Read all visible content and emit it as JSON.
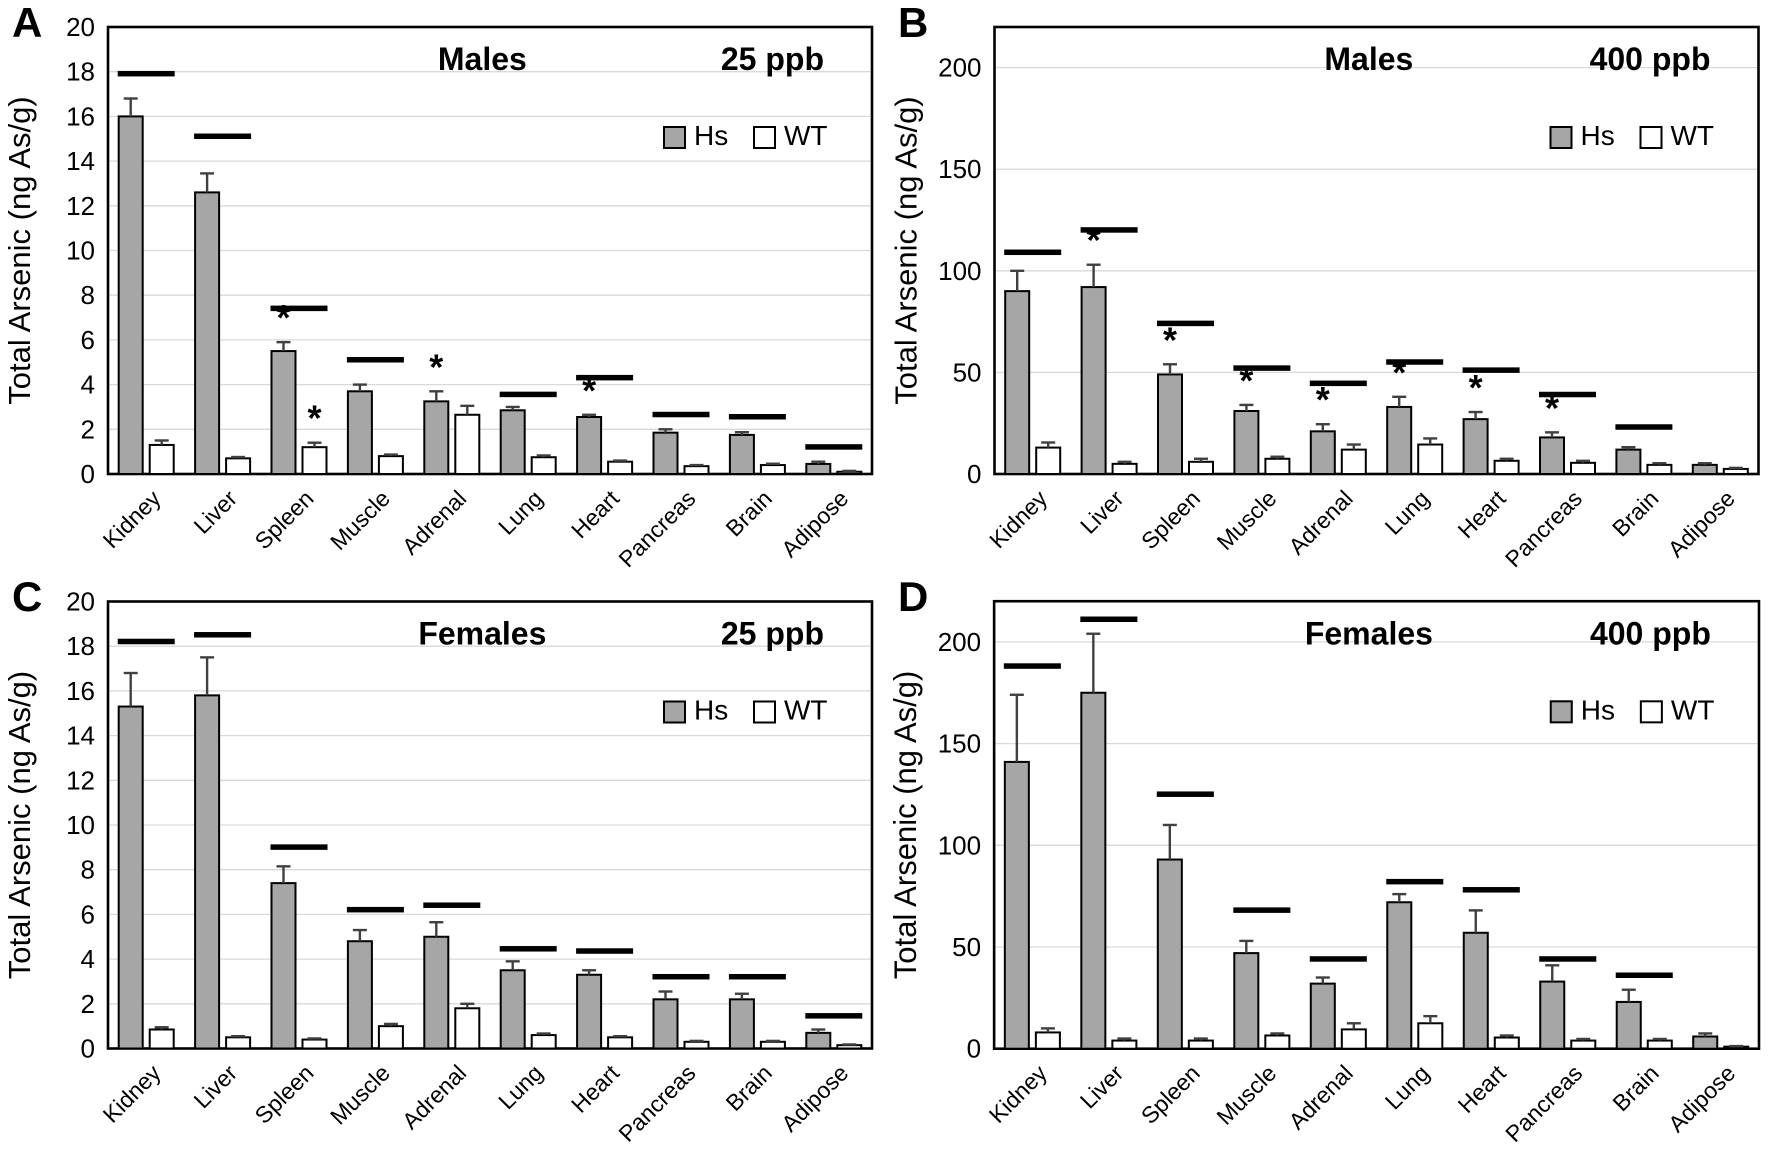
{
  "figure": {
    "ylabel": "Total Arsenic (ng As/g)",
    "legend_labels": [
      "Hs",
      "WT"
    ],
    "colors": {
      "hs_fill": "#a6a6a6",
      "wt_fill": "#ffffff",
      "bar_border": "#000000",
      "gridline": "#d9d9d9",
      "error_bar": "#404040",
      "sig_line": "#000000",
      "text": "#000000"
    }
  },
  "chart_data": [
    {
      "panel": "A",
      "type": "bar",
      "title": "Males",
      "dose": "25 ppb",
      "ylabel": "Total Arsenic (ng As/g)",
      "ylim": [
        0,
        20
      ],
      "yticks": [
        0,
        2,
        4,
        6,
        8,
        10,
        12,
        14,
        16,
        18,
        20
      ],
      "grid": true,
      "legend_position": "top-right",
      "categories": [
        "Kidney",
        "Liver",
        "Spleen",
        "Muscle",
        "Adrenal",
        "Lung",
        "Heart",
        "Pancreas",
        "Brain",
        "Adipose"
      ],
      "series": [
        {
          "name": "Hs",
          "values": [
            16.0,
            12.6,
            5.5,
            3.7,
            3.25,
            2.85,
            2.55,
            1.85,
            1.75,
            0.45
          ],
          "errors": [
            0.8,
            0.85,
            0.4,
            0.3,
            0.45,
            0.15,
            0.1,
            0.15,
            0.12,
            0.1
          ],
          "asterisks": [
            false,
            false,
            true,
            false,
            true,
            false,
            true,
            false,
            false,
            false
          ]
        },
        {
          "name": "WT",
          "values": [
            1.3,
            0.7,
            1.2,
            0.8,
            2.65,
            0.75,
            0.55,
            0.35,
            0.4,
            0.1
          ],
          "errors": [
            0.2,
            0.06,
            0.2,
            0.07,
            0.4,
            0.08,
            0.05,
            0.05,
            0.06,
            0.04
          ],
          "asterisks": [
            false,
            false,
            true,
            false,
            false,
            false,
            false,
            false,
            false,
            false
          ]
        }
      ],
      "sig_lines": [
        17.9,
        15.1,
        7.4,
        5.1,
        null,
        3.55,
        4.3,
        2.65,
        2.55,
        1.2
      ]
    },
    {
      "panel": "B",
      "type": "bar",
      "title": "Males",
      "dose": "400 ppb",
      "ylabel": "Total Arsenic (ng As/g)",
      "ylim": [
        0,
        220
      ],
      "yticks": [
        0,
        50,
        100,
        150,
        200
      ],
      "grid": true,
      "legend_position": "top-right",
      "categories": [
        "Kidney",
        "Liver",
        "Spleen",
        "Muscle",
        "Adrenal",
        "Lung",
        "Heart",
        "Pancreas",
        "Brain",
        "Adipose"
      ],
      "series": [
        {
          "name": "Hs",
          "values": [
            90,
            92,
            49,
            31,
            21,
            33,
            27,
            18,
            12,
            4.5
          ],
          "errors": [
            10,
            11,
            5,
            3,
            3.5,
            5,
            3.5,
            2.5,
            1.2,
            0.8
          ],
          "asterisks": [
            false,
            true,
            true,
            true,
            true,
            true,
            true,
            true,
            false,
            false
          ]
        },
        {
          "name": "WT",
          "values": [
            13,
            5,
            6,
            7.5,
            12,
            14.5,
            6.5,
            5.5,
            4.5,
            2.5
          ],
          "errors": [
            2.5,
            1,
            1.5,
            1,
            2.5,
            3,
            1,
            1,
            0.8,
            0.5
          ],
          "asterisks": [
            false,
            false,
            false,
            false,
            false,
            false,
            false,
            false,
            false,
            false
          ]
        }
      ],
      "sig_lines": [
        109,
        120,
        74,
        52,
        44.5,
        55,
        51,
        39,
        23,
        null
      ]
    },
    {
      "panel": "C",
      "type": "bar",
      "title": "Females",
      "dose": "25 ppb",
      "ylabel": "Total Arsenic (ng As/g)",
      "ylim": [
        0,
        20
      ],
      "yticks": [
        0,
        2,
        4,
        6,
        8,
        10,
        12,
        14,
        16,
        18,
        20
      ],
      "grid": true,
      "legend_position": "top-right",
      "categories": [
        "Kidney",
        "Liver",
        "Spleen",
        "Muscle",
        "Adrenal",
        "Lung",
        "Heart",
        "Pancreas",
        "Brain",
        "Adipose"
      ],
      "series": [
        {
          "name": "Hs",
          "values": [
            15.3,
            15.8,
            7.4,
            4.8,
            5.0,
            3.5,
            3.3,
            2.2,
            2.2,
            0.7
          ],
          "errors": [
            1.5,
            1.7,
            0.75,
            0.5,
            0.65,
            0.4,
            0.2,
            0.35,
            0.25,
            0.15
          ],
          "asterisks": [
            false,
            false,
            false,
            false,
            false,
            false,
            false,
            false,
            false,
            false
          ]
        },
        {
          "name": "WT",
          "values": [
            0.85,
            0.5,
            0.4,
            1.0,
            1.8,
            0.6,
            0.5,
            0.3,
            0.3,
            0.15
          ],
          "errors": [
            0.1,
            0.05,
            0.05,
            0.1,
            0.2,
            0.07,
            0.05,
            0.04,
            0.04,
            0.03
          ],
          "asterisks": [
            false,
            false,
            false,
            false,
            false,
            false,
            false,
            false,
            false,
            false
          ]
        }
      ],
      "sig_lines": [
        18.2,
        18.5,
        9.0,
        6.2,
        6.4,
        4.45,
        4.35,
        3.2,
        3.2,
        1.45
      ]
    },
    {
      "panel": "D",
      "type": "bar",
      "title": "Females",
      "dose": "400 ppb",
      "ylabel": "Total Arsenic (ng As/g)",
      "ylim": [
        0,
        220
      ],
      "yticks": [
        0,
        50,
        100,
        150,
        200
      ],
      "grid": true,
      "legend_position": "top-right",
      "categories": [
        "Kidney",
        "Liver",
        "Spleen",
        "Muscle",
        "Adrenal",
        "Lung",
        "Heart",
        "Pancreas",
        "Brain",
        "Adipose"
      ],
      "series": [
        {
          "name": "Hs",
          "values": [
            141,
            175,
            93,
            47,
            32,
            72,
            57,
            33,
            23,
            6
          ],
          "errors": [
            33,
            29,
            17,
            6,
            3,
            4,
            11,
            8,
            6,
            1.5
          ],
          "asterisks": [
            false,
            false,
            false,
            false,
            false,
            false,
            false,
            false,
            false,
            false
          ]
        },
        {
          "name": "WT",
          "values": [
            8,
            4,
            4,
            6.5,
            9.5,
            12.5,
            5.5,
            4,
            4,
            1
          ],
          "errors": [
            2,
            1,
            1,
            1,
            3,
            3.5,
            1,
            0.8,
            0.8,
            0.3
          ],
          "asterisks": [
            false,
            false,
            false,
            false,
            false,
            false,
            false,
            false,
            false,
            false
          ]
        }
      ],
      "sig_lines": [
        188,
        211,
        125,
        68,
        44,
        82,
        78,
        44,
        36,
        null
      ]
    }
  ]
}
